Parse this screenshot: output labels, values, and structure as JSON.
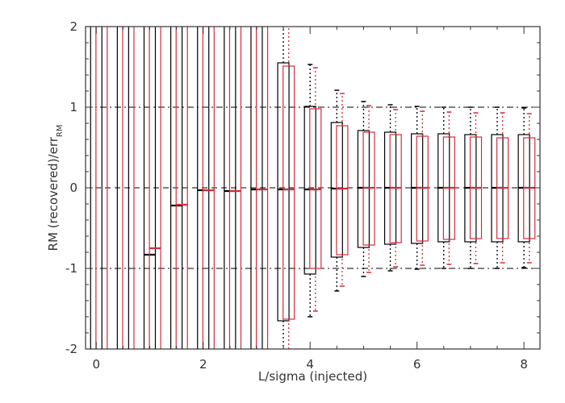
{
  "chart_data": {
    "type": "box",
    "xlabel": "L/sigma (injected)",
    "ylabel_main": "RM (recovered)/err",
    "ylabel_sub": "RM",
    "xlim": [
      -0.2,
      8.3
    ],
    "ylim": [
      -2,
      2
    ],
    "xticks": [
      0,
      2,
      4,
      6,
      8
    ],
    "yticks": [
      -2,
      -1,
      0,
      1,
      2
    ],
    "xtick_labels": [
      "0",
      "2",
      "4",
      "6",
      "8"
    ],
    "ytick_labels": [
      "-2",
      "-1",
      "0",
      "1",
      "2"
    ],
    "reference_lines": [
      {
        "y": 1,
        "style": "dash-dot"
      },
      {
        "y": 0,
        "style": "dashed"
      },
      {
        "y": -1,
        "style": "dash-dot"
      }
    ],
    "colors": {
      "black": "#000000",
      "red": "#d22d3c",
      "axes": "#333333"
    },
    "series": [
      {
        "color": "black",
        "x": [
          0.0,
          0.5,
          1.0,
          1.5,
          2.0,
          2.5,
          3.0,
          3.5,
          4.0,
          4.5,
          5.0,
          5.5,
          6.0,
          6.5,
          7.0,
          7.5,
          8.0
        ],
        "median": [
          null,
          null,
          -0.83,
          -0.22,
          -0.03,
          -0.04,
          -0.02,
          -0.02,
          -0.02,
          -0.01,
          0.0,
          0.0,
          0.0,
          0.0,
          0.0,
          0.0,
          0.0
        ],
        "q1": [
          -2.5,
          -2.5,
          -2.5,
          -2.5,
          -2.5,
          -2.5,
          -2.5,
          -1.65,
          -1.07,
          -0.86,
          -0.74,
          -0.7,
          -0.69,
          -0.67,
          -0.67,
          -0.67,
          -0.67
        ],
        "q3": [
          2.5,
          2.5,
          2.5,
          2.5,
          2.5,
          2.5,
          2.5,
          1.55,
          1.01,
          0.81,
          0.71,
          0.69,
          0.67,
          0.67,
          0.66,
          0.66,
          0.66
        ],
        "whisker_low": [
          -2.5,
          -2.5,
          -2.5,
          -2.5,
          -2.5,
          -2.5,
          -2.5,
          -2.5,
          -1.6,
          -1.28,
          -1.1,
          -1.03,
          -1.01,
          -1.0,
          -1.0,
          -1.0,
          -0.99
        ],
        "whisker_high": [
          2.5,
          2.5,
          2.5,
          2.5,
          2.5,
          2.5,
          2.5,
          2.5,
          1.53,
          1.21,
          1.07,
          1.03,
          1.01,
          1.0,
          1.0,
          1.0,
          0.99
        ]
      },
      {
        "color": "red",
        "x": [
          0.1,
          0.6,
          1.1,
          1.6,
          2.1,
          2.6,
          3.1,
          3.6,
          4.1,
          4.6,
          5.1,
          5.6,
          6.1,
          6.6,
          7.1,
          7.6,
          8.1
        ],
        "median": [
          null,
          null,
          -0.75,
          -0.21,
          -0.03,
          -0.04,
          -0.02,
          -0.02,
          -0.02,
          -0.01,
          0.0,
          0.0,
          0.0,
          0.0,
          0.0,
          0.0,
          0.0
        ],
        "q1": [
          -2.5,
          -2.5,
          -2.5,
          -2.5,
          -2.5,
          -2.5,
          -2.5,
          -1.63,
          -1.0,
          -0.83,
          -0.71,
          -0.68,
          -0.66,
          -0.64,
          -0.63,
          -0.63,
          -0.63
        ],
        "q3": [
          2.5,
          2.5,
          2.5,
          2.5,
          2.5,
          2.5,
          2.5,
          1.51,
          0.98,
          0.77,
          0.69,
          0.66,
          0.64,
          0.63,
          0.63,
          0.62,
          0.62
        ],
        "whisker_low": [
          -2.5,
          -2.5,
          -2.5,
          -2.5,
          -2.5,
          -2.5,
          -2.5,
          -2.5,
          -1.53,
          -1.22,
          -1.05,
          -0.98,
          -0.96,
          -0.95,
          -0.94,
          -0.93,
          -0.93
        ],
        "whisker_high": [
          2.5,
          2.5,
          2.5,
          2.5,
          2.5,
          2.5,
          2.5,
          2.5,
          1.49,
          1.17,
          1.02,
          0.97,
          0.95,
          0.94,
          0.93,
          0.93,
          0.92
        ]
      }
    ]
  }
}
